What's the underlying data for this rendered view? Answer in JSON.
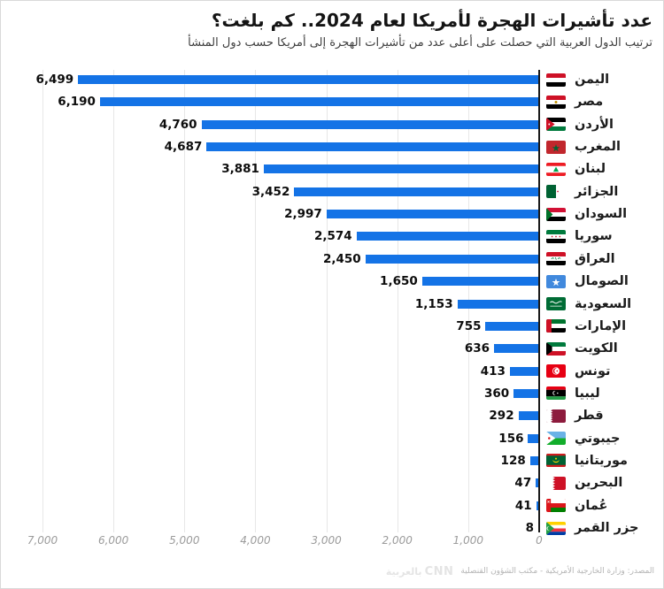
{
  "header": {
    "title": "عدد تأشيرات الهجرة لأمريكا لعام 2024.. كم بلغت؟",
    "subtitle": "ترتيب الدول العربية التي حصلت على أعلى عدد من تأشيرات الهجرة إلى أمريكا حسب دول المنشأ"
  },
  "chart_data": {
    "type": "bar",
    "orientation": "horizontal-rtl",
    "title": "عدد تأشيرات الهجرة لأمريكا لعام 2024.. كم بلغت؟",
    "xlabel": "",
    "ylabel": "",
    "xlim": [
      0,
      7000
    ],
    "grid": true,
    "bar_color": "#1473e6",
    "x_ticks": [
      "7,000",
      "6,000",
      "5,000",
      "4,000",
      "3,000",
      "2,000",
      "1,000",
      "0"
    ],
    "x_tick_values": [
      7000,
      6000,
      5000,
      4000,
      3000,
      2000,
      1000,
      0
    ],
    "countries": [
      {
        "label": "اليمن",
        "flag": "yemen",
        "value": 6499,
        "display": "6,499"
      },
      {
        "label": "مصر",
        "flag": "egypt",
        "value": 6190,
        "display": "6,190"
      },
      {
        "label": "الأردن",
        "flag": "jordan",
        "value": 4760,
        "display": "4,760"
      },
      {
        "label": "المغرب",
        "flag": "morocco",
        "value": 4687,
        "display": "4,687"
      },
      {
        "label": "لبنان",
        "flag": "lebanon",
        "value": 3881,
        "display": "3,881"
      },
      {
        "label": "الجزائر",
        "flag": "algeria",
        "value": 3452,
        "display": "3,452"
      },
      {
        "label": "السودان",
        "flag": "sudan",
        "value": 2997,
        "display": "2,997"
      },
      {
        "label": "سوريا",
        "flag": "syria",
        "value": 2574,
        "display": "2,574"
      },
      {
        "label": "العراق",
        "flag": "iraq",
        "value": 2450,
        "display": "2,450"
      },
      {
        "label": "الصومال",
        "flag": "somalia",
        "value": 1650,
        "display": "1,650"
      },
      {
        "label": "السعودية",
        "flag": "saudi-arabia",
        "value": 1153,
        "display": "1,153"
      },
      {
        "label": "الإمارات",
        "flag": "uae",
        "value": 755,
        "display": "755"
      },
      {
        "label": "الكويت",
        "flag": "kuwait",
        "value": 636,
        "display": "636"
      },
      {
        "label": "تونس",
        "flag": "tunisia",
        "value": 413,
        "display": "413"
      },
      {
        "label": "ليبيا",
        "flag": "libya",
        "value": 360,
        "display": "360"
      },
      {
        "label": "قطر",
        "flag": "qatar",
        "value": 292,
        "display": "292"
      },
      {
        "label": "جيبوتي",
        "flag": "djibouti",
        "value": 156,
        "display": "156"
      },
      {
        "label": "موريتانيا",
        "flag": "mauritania",
        "value": 128,
        "display": "128"
      },
      {
        "label": "البحرين",
        "flag": "bahrain",
        "value": 47,
        "display": "47"
      },
      {
        "label": "عُمان",
        "flag": "oman",
        "value": 41,
        "display": "41"
      },
      {
        "label": "جزر القمر",
        "flag": "comoros",
        "value": 8,
        "display": "8"
      }
    ]
  },
  "footer": {
    "source": "المصدر: وزارة الخارجية الأمريكية - مكتب الشؤون القنصلية",
    "logo_cnn": "CNN",
    "logo_ar": "بالعربية"
  }
}
